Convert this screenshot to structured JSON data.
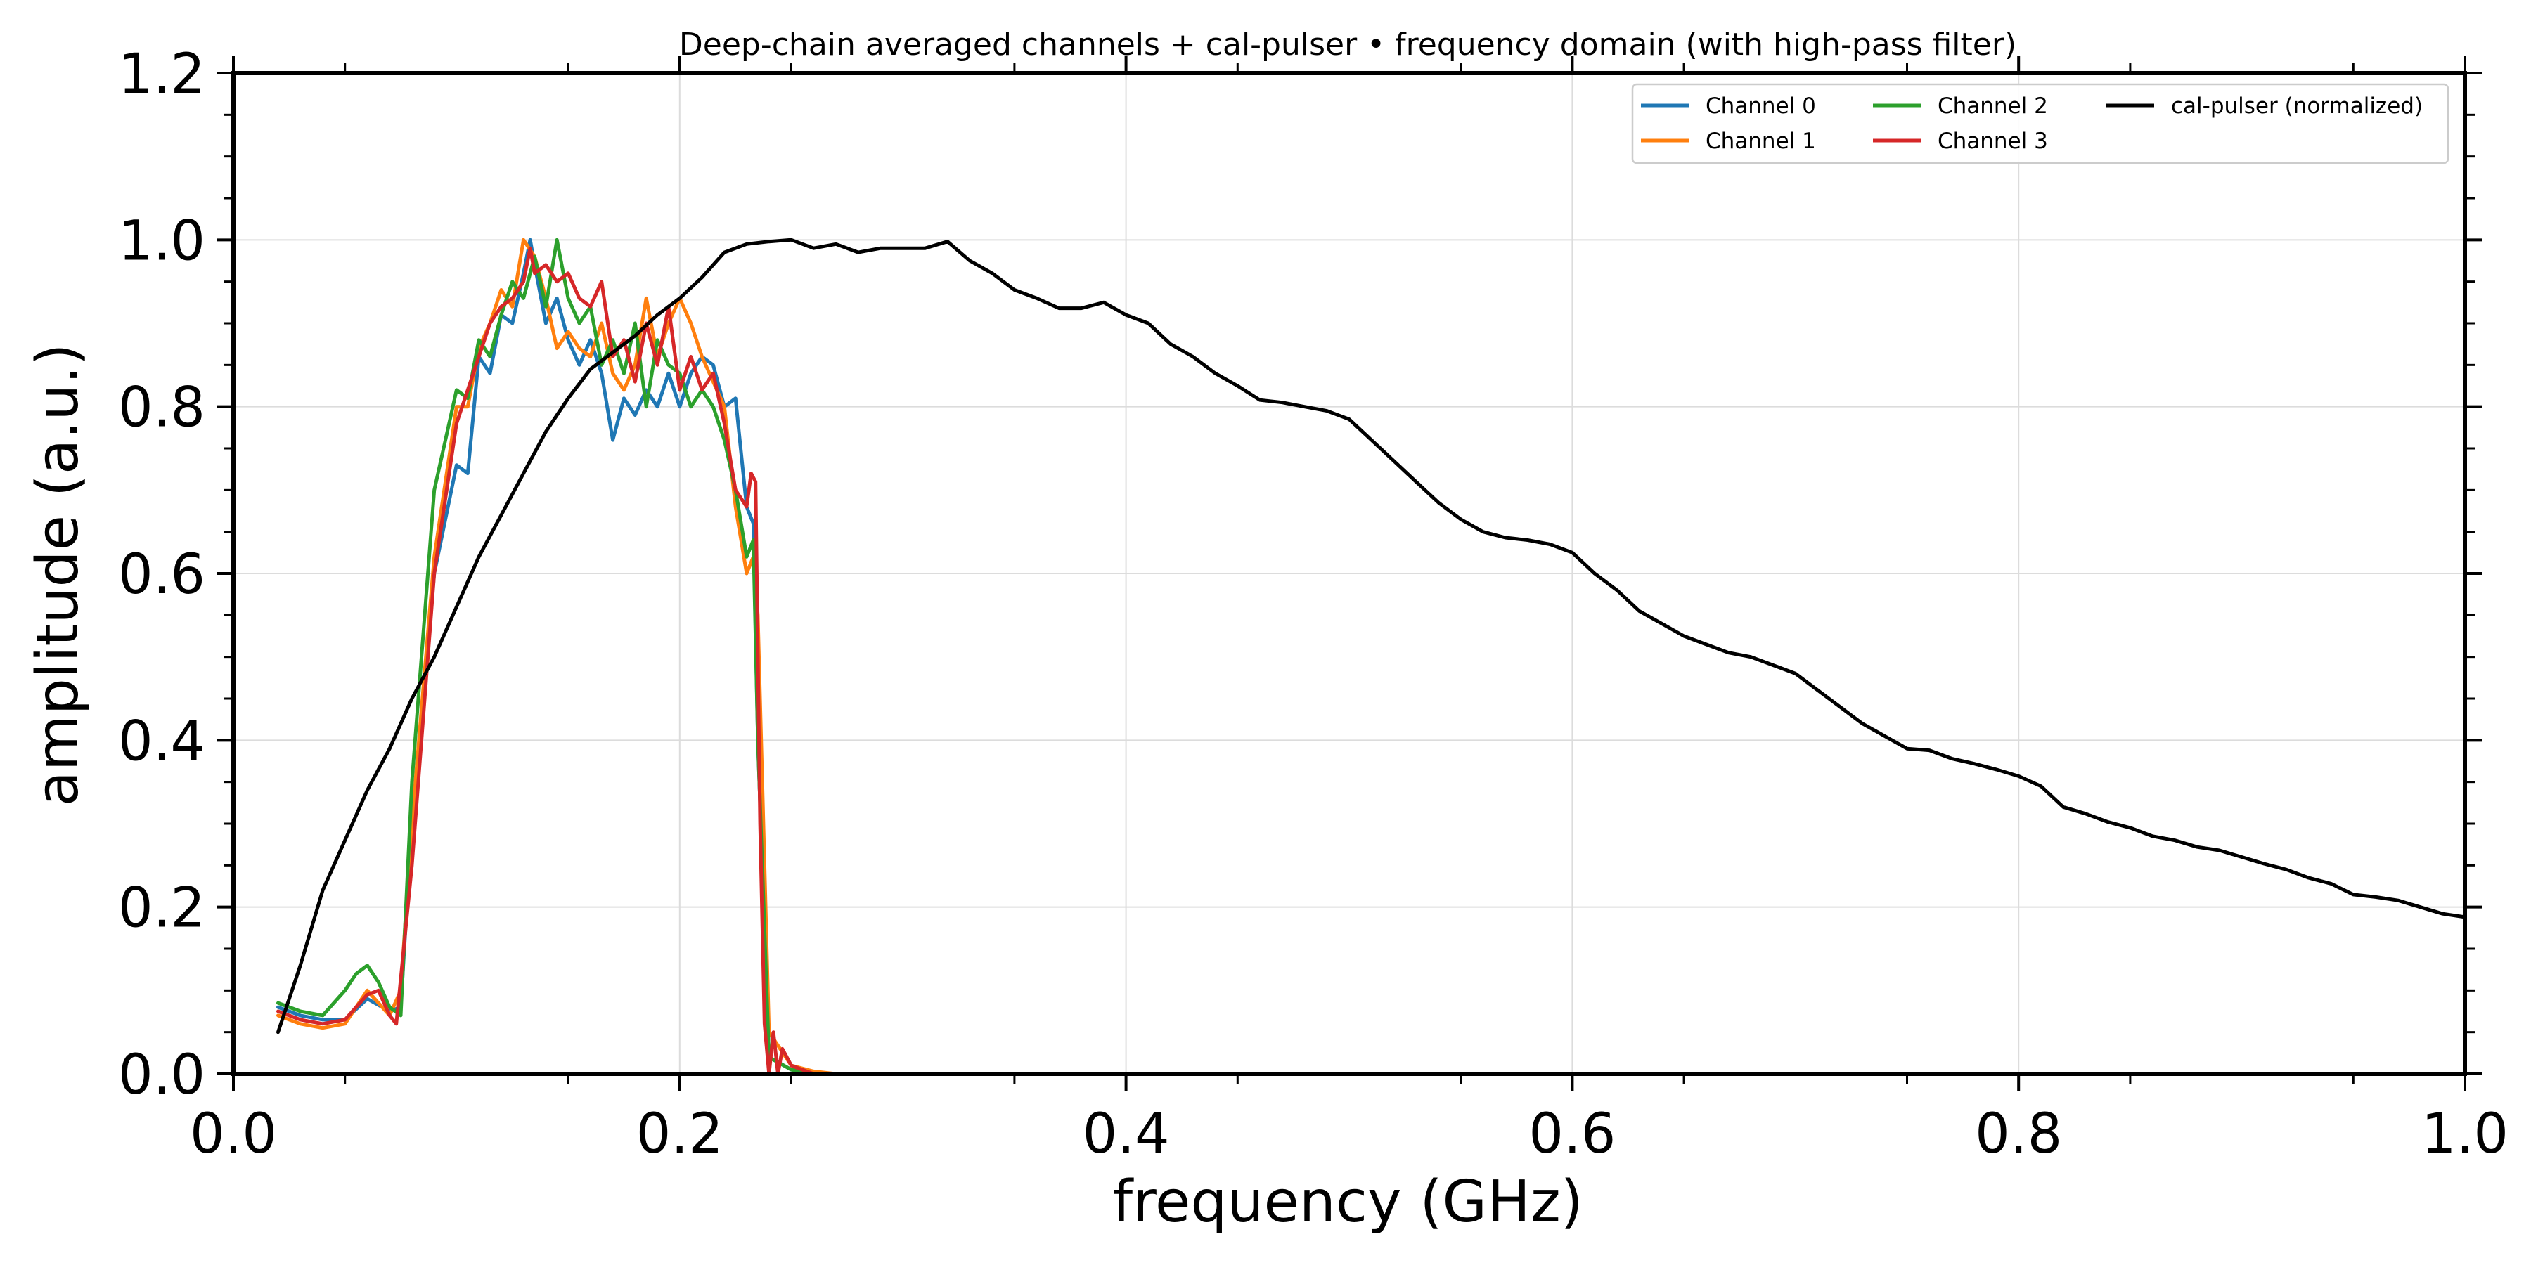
{
  "chart_data": {
    "type": "line",
    "title": "Deep-chain averaged channels + cal-pulser  •  frequency domain (with high-pass filter)",
    "xlabel": "frequency (GHz)",
    "ylabel": "amplitude (a.u.)",
    "xlim": [
      0.0,
      1.0
    ],
    "ylim": [
      0.0,
      1.2
    ],
    "x_ticks": [
      "0.0",
      "0.2",
      "0.4",
      "0.6",
      "0.8",
      "1.0"
    ],
    "y_ticks": [
      "0.0",
      "0.2",
      "0.4",
      "0.6",
      "0.8",
      "1.0",
      "1.2"
    ],
    "grid": true,
    "legend_position": "top-right",
    "series": [
      {
        "name": "Channel 0",
        "color": "#1f77b4",
        "x": [
          0.02,
          0.03,
          0.04,
          0.05,
          0.06,
          0.07,
          0.075,
          0.08,
          0.09,
          0.1,
          0.105,
          0.11,
          0.115,
          0.12,
          0.125,
          0.13,
          0.133,
          0.135,
          0.14,
          0.145,
          0.15,
          0.155,
          0.16,
          0.165,
          0.17,
          0.175,
          0.18,
          0.185,
          0.19,
          0.195,
          0.2,
          0.205,
          0.21,
          0.215,
          0.22,
          0.225,
          0.23,
          0.233,
          0.235,
          0.24,
          0.25,
          0.26,
          0.27
        ],
        "y": [
          0.08,
          0.07,
          0.065,
          0.065,
          0.09,
          0.075,
          0.08,
          0.3,
          0.6,
          0.73,
          0.72,
          0.86,
          0.84,
          0.91,
          0.9,
          0.96,
          1.0,
          0.97,
          0.9,
          0.93,
          0.88,
          0.85,
          0.88,
          0.84,
          0.76,
          0.81,
          0.79,
          0.82,
          0.8,
          0.84,
          0.8,
          0.84,
          0.86,
          0.85,
          0.8,
          0.81,
          0.68,
          0.66,
          0.4,
          0.02,
          0.005,
          0.002,
          0.0
        ]
      },
      {
        "name": "Channel 1",
        "color": "#ff7f0e",
        "x": [
          0.02,
          0.03,
          0.04,
          0.05,
          0.06,
          0.07,
          0.075,
          0.08,
          0.09,
          0.1,
          0.105,
          0.11,
          0.115,
          0.12,
          0.125,
          0.13,
          0.135,
          0.14,
          0.145,
          0.15,
          0.155,
          0.16,
          0.165,
          0.17,
          0.175,
          0.18,
          0.185,
          0.19,
          0.195,
          0.2,
          0.205,
          0.21,
          0.215,
          0.22,
          0.225,
          0.23,
          0.233,
          0.235,
          0.24,
          0.25,
          0.26,
          0.27
        ],
        "y": [
          0.07,
          0.06,
          0.055,
          0.06,
          0.1,
          0.07,
          0.1,
          0.3,
          0.62,
          0.8,
          0.8,
          0.87,
          0.9,
          0.94,
          0.92,
          1.0,
          0.98,
          0.93,
          0.87,
          0.89,
          0.87,
          0.86,
          0.9,
          0.84,
          0.82,
          0.85,
          0.93,
          0.86,
          0.9,
          0.93,
          0.9,
          0.86,
          0.83,
          0.8,
          0.68,
          0.6,
          0.62,
          0.55,
          0.05,
          0.01,
          0.003,
          0.0
        ]
      },
      {
        "name": "Channel 2",
        "color": "#2ca02c",
        "x": [
          0.02,
          0.03,
          0.04,
          0.05,
          0.055,
          0.06,
          0.065,
          0.07,
          0.075,
          0.08,
          0.09,
          0.1,
          0.105,
          0.11,
          0.115,
          0.12,
          0.125,
          0.13,
          0.135,
          0.14,
          0.145,
          0.15,
          0.155,
          0.16,
          0.165,
          0.17,
          0.175,
          0.18,
          0.185,
          0.19,
          0.195,
          0.2,
          0.205,
          0.21,
          0.215,
          0.22,
          0.225,
          0.23,
          0.233,
          0.235,
          0.24,
          0.25,
          0.26
        ],
        "y": [
          0.085,
          0.075,
          0.07,
          0.1,
          0.12,
          0.13,
          0.11,
          0.08,
          0.07,
          0.35,
          0.7,
          0.82,
          0.81,
          0.88,
          0.86,
          0.91,
          0.95,
          0.93,
          0.98,
          0.92,
          1.0,
          0.93,
          0.9,
          0.92,
          0.85,
          0.88,
          0.84,
          0.9,
          0.8,
          0.88,
          0.85,
          0.84,
          0.8,
          0.82,
          0.8,
          0.76,
          0.7,
          0.62,
          0.64,
          0.4,
          0.02,
          0.005,
          0.0
        ]
      },
      {
        "name": "Channel 3",
        "color": "#d62728",
        "x": [
          0.02,
          0.03,
          0.04,
          0.05,
          0.06,
          0.065,
          0.07,
          0.073,
          0.08,
          0.09,
          0.1,
          0.105,
          0.11,
          0.115,
          0.12,
          0.125,
          0.13,
          0.133,
          0.135,
          0.14,
          0.145,
          0.15,
          0.155,
          0.16,
          0.165,
          0.17,
          0.175,
          0.18,
          0.185,
          0.19,
          0.195,
          0.2,
          0.205,
          0.21,
          0.215,
          0.22,
          0.225,
          0.23,
          0.232,
          0.234,
          0.236,
          0.238,
          0.24,
          0.242,
          0.244,
          0.246,
          0.25,
          0.255,
          0.26
        ],
        "y": [
          0.075,
          0.065,
          0.06,
          0.065,
          0.095,
          0.1,
          0.07,
          0.06,
          0.25,
          0.6,
          0.78,
          0.82,
          0.86,
          0.9,
          0.92,
          0.93,
          0.95,
          0.99,
          0.96,
          0.97,
          0.95,
          0.96,
          0.93,
          0.92,
          0.95,
          0.86,
          0.88,
          0.83,
          0.9,
          0.85,
          0.92,
          0.82,
          0.86,
          0.82,
          0.84,
          0.78,
          0.7,
          0.68,
          0.72,
          0.71,
          0.3,
          0.06,
          0.0,
          0.05,
          0.0,
          0.03,
          0.01,
          0.005,
          0.0
        ]
      },
      {
        "name": "cal-pulser (normalized)",
        "color": "#000000",
        "x": [
          0.02,
          0.03,
          0.04,
          0.05,
          0.06,
          0.07,
          0.08,
          0.09,
          0.1,
          0.11,
          0.12,
          0.13,
          0.14,
          0.15,
          0.16,
          0.17,
          0.18,
          0.19,
          0.2,
          0.21,
          0.22,
          0.23,
          0.24,
          0.25,
          0.26,
          0.27,
          0.28,
          0.29,
          0.3,
          0.31,
          0.32,
          0.33,
          0.34,
          0.35,
          0.36,
          0.37,
          0.38,
          0.39,
          0.4,
          0.41,
          0.42,
          0.43,
          0.44,
          0.45,
          0.46,
          0.47,
          0.48,
          0.49,
          0.5,
          0.51,
          0.52,
          0.53,
          0.54,
          0.55,
          0.56,
          0.57,
          0.58,
          0.59,
          0.6,
          0.61,
          0.62,
          0.63,
          0.64,
          0.65,
          0.66,
          0.67,
          0.68,
          0.69,
          0.7,
          0.71,
          0.72,
          0.73,
          0.74,
          0.75,
          0.76,
          0.77,
          0.78,
          0.79,
          0.8,
          0.81,
          0.82,
          0.83,
          0.84,
          0.85,
          0.86,
          0.87,
          0.88,
          0.89,
          0.9,
          0.91,
          0.92,
          0.93,
          0.94,
          0.95,
          0.96,
          0.97,
          0.98,
          0.99,
          1.0
        ],
        "y": [
          0.05,
          0.13,
          0.22,
          0.28,
          0.34,
          0.39,
          0.45,
          0.5,
          0.56,
          0.62,
          0.67,
          0.72,
          0.77,
          0.81,
          0.845,
          0.865,
          0.885,
          0.91,
          0.93,
          0.955,
          0.985,
          0.995,
          0.998,
          1.0,
          0.99,
          0.995,
          0.985,
          0.99,
          0.99,
          0.99,
          0.998,
          0.975,
          0.96,
          0.94,
          0.93,
          0.918,
          0.918,
          0.925,
          0.91,
          0.9,
          0.875,
          0.86,
          0.84,
          0.825,
          0.808,
          0.805,
          0.8,
          0.795,
          0.785,
          0.76,
          0.735,
          0.71,
          0.685,
          0.665,
          0.65,
          0.643,
          0.64,
          0.635,
          0.625,
          0.6,
          0.58,
          0.555,
          0.54,
          0.525,
          0.515,
          0.505,
          0.5,
          0.49,
          0.48,
          0.46,
          0.44,
          0.42,
          0.405,
          0.39,
          0.388,
          0.378,
          0.372,
          0.365,
          0.357,
          0.345,
          0.32,
          0.312,
          0.302,
          0.295,
          0.285,
          0.28,
          0.272,
          0.268,
          0.26,
          0.252,
          0.245,
          0.235,
          0.228,
          0.215,
          0.212,
          0.208,
          0.2,
          0.192,
          0.188
        ]
      }
    ]
  }
}
